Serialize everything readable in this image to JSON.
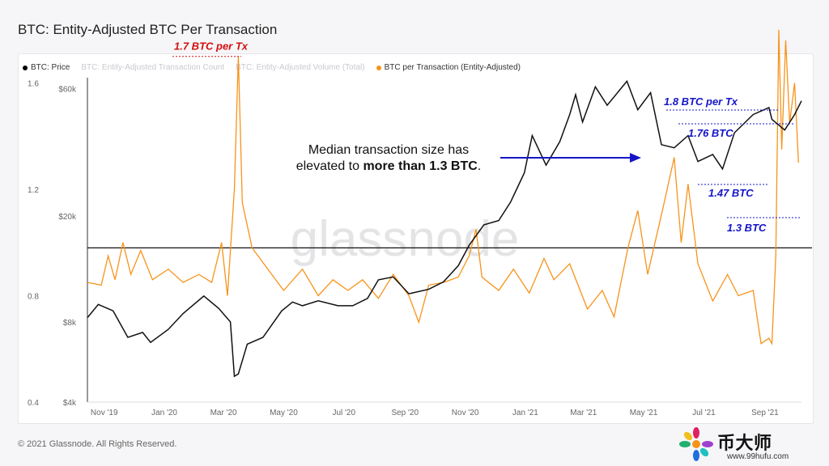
{
  "title": "BTC: Entity-Adjusted BTC Per Transaction",
  "legend": [
    {
      "label": "BTC: Price",
      "color": "#000000",
      "active": true
    },
    {
      "label": "BTC: Entity-Adjusted Transaction Count",
      "color": "#cccccc",
      "active": false
    },
    {
      "label": "BTC: Entity-Adjusted Volume (Total)",
      "color": "#cccccc",
      "active": false
    },
    {
      "label": "BTC per Transaction (Entity-Adjusted)",
      "color": "#f7931a",
      "active": true
    }
  ],
  "footer": "© 2021 Glassnode. All Rights Reserved.",
  "watermark": "glassnode",
  "logo": {
    "brand": "币大师",
    "url": "www.99hufu.com"
  },
  "colors": {
    "price": "#111111",
    "btcpt": "#f7931a",
    "blue": "#1515c8",
    "red": "#d01010"
  },
  "chart_data": {
    "type": "line",
    "x_ticks": [
      "Nov '19",
      "Jan '20",
      "Mar '20",
      "May '20",
      "Jul '20",
      "Sep '20",
      "Nov '20",
      "Jan '21",
      "Mar '21",
      "May '21",
      "Jul '21",
      "Sep '21"
    ],
    "x_range": [
      "2019-10-15",
      "2021-10-08"
    ],
    "left_axis": {
      "ticks": [
        "1.6",
        "1.2",
        "0.8",
        "0.4"
      ],
      "values": [
        1.6,
        1.2,
        0.8,
        0.4
      ],
      "range": [
        0.4,
        1.62
      ]
    },
    "right_axis": {
      "ticks": [
        "$60k",
        "$20k",
        "$8k",
        "$4k"
      ],
      "values": [
        60000,
        20000,
        8000,
        4000
      ],
      "scale": "log",
      "range": [
        4000,
        66000
      ]
    },
    "series": [
      {
        "name": "BTC: Price",
        "axis": "right",
        "points": [
          [
            "2019-10-15",
            8300
          ],
          [
            "2019-10-26",
            9300
          ],
          [
            "2019-11-10",
            8800
          ],
          [
            "2019-11-25",
            7000
          ],
          [
            "2019-12-10",
            7300
          ],
          [
            "2019-12-18",
            6700
          ],
          [
            "2020-01-05",
            7500
          ],
          [
            "2020-01-20",
            8600
          ],
          [
            "2020-02-10",
            10000
          ],
          [
            "2020-02-25",
            9000
          ],
          [
            "2020-03-08",
            8000
          ],
          [
            "2020-03-12",
            5000
          ],
          [
            "2020-03-16",
            5100
          ],
          [
            "2020-03-25",
            6600
          ],
          [
            "2020-04-10",
            7000
          ],
          [
            "2020-04-29",
            8800
          ],
          [
            "2020-05-10",
            9500
          ],
          [
            "2020-05-20",
            9200
          ],
          [
            "2020-06-05",
            9600
          ],
          [
            "2020-06-25",
            9200
          ],
          [
            "2020-07-10",
            9200
          ],
          [
            "2020-07-25",
            9800
          ],
          [
            "2020-08-05",
            11500
          ],
          [
            "2020-08-20",
            11800
          ],
          [
            "2020-09-05",
            10200
          ],
          [
            "2020-09-25",
            10600
          ],
          [
            "2020-10-10",
            11300
          ],
          [
            "2020-10-25",
            13000
          ],
          [
            "2020-11-05",
            15500
          ],
          [
            "2020-11-20",
            18500
          ],
          [
            "2020-12-05",
            19200
          ],
          [
            "2020-12-17",
            22500
          ],
          [
            "2020-12-31",
            29000
          ],
          [
            "2021-01-08",
            40000
          ],
          [
            "2021-01-22",
            31000
          ],
          [
            "2021-02-05",
            38000
          ],
          [
            "2021-02-15",
            48000
          ],
          [
            "2021-02-21",
            57000
          ],
          [
            "2021-02-28",
            45000
          ],
          [
            "2021-03-13",
            61000
          ],
          [
            "2021-03-25",
            52000
          ],
          [
            "2021-04-14",
            64000
          ],
          [
            "2021-04-25",
            50000
          ],
          [
            "2021-05-08",
            58000
          ],
          [
            "2021-05-19",
            37000
          ],
          [
            "2021-06-01",
            36000
          ],
          [
            "2021-06-15",
            40000
          ],
          [
            "2021-06-25",
            32000
          ],
          [
            "2021-07-10",
            34000
          ],
          [
            "2021-07-20",
            30000
          ],
          [
            "2021-08-01",
            41000
          ],
          [
            "2021-08-20",
            48000
          ],
          [
            "2021-09-05",
            51000
          ],
          [
            "2021-09-08",
            46000
          ],
          [
            "2021-09-21",
            42000
          ],
          [
            "2021-10-01",
            48000
          ],
          [
            "2021-10-08",
            54000
          ]
        ]
      },
      {
        "name": "BTC per Transaction (Entity-Adjusted)",
        "axis": "left",
        "points": [
          [
            "2019-10-15",
            0.85
          ],
          [
            "2019-10-29",
            0.84
          ],
          [
            "2019-11-05",
            0.95
          ],
          [
            "2019-11-12",
            0.86
          ],
          [
            "2019-11-20",
            1.0
          ],
          [
            "2019-11-28",
            0.88
          ],
          [
            "2019-12-08",
            0.97
          ],
          [
            "2019-12-20",
            0.86
          ],
          [
            "2020-01-05",
            0.9
          ],
          [
            "2020-01-20",
            0.85
          ],
          [
            "2020-02-05",
            0.88
          ],
          [
            "2020-02-18",
            0.85
          ],
          [
            "2020-02-28",
            1.0
          ],
          [
            "2020-03-05",
            0.8
          ],
          [
            "2020-03-12",
            1.2
          ],
          [
            "2020-03-16",
            1.7
          ],
          [
            "2020-03-20",
            1.15
          ],
          [
            "2020-03-30",
            0.98
          ],
          [
            "2020-04-15",
            0.9
          ],
          [
            "2020-05-01",
            0.82
          ],
          [
            "2020-05-20",
            0.9
          ],
          [
            "2020-06-05",
            0.8
          ],
          [
            "2020-06-20",
            0.86
          ],
          [
            "2020-07-05",
            0.82
          ],
          [
            "2020-07-20",
            0.86
          ],
          [
            "2020-08-05",
            0.79
          ],
          [
            "2020-08-20",
            0.88
          ],
          [
            "2020-09-05",
            0.8
          ],
          [
            "2020-09-15",
            0.7
          ],
          [
            "2020-09-25",
            0.84
          ],
          [
            "2020-10-10",
            0.85
          ],
          [
            "2020-10-25",
            0.87
          ],
          [
            "2020-11-05",
            0.95
          ],
          [
            "2020-11-12",
            1.05
          ],
          [
            "2020-11-18",
            0.87
          ],
          [
            "2020-12-05",
            0.82
          ],
          [
            "2020-12-20",
            0.9
          ],
          [
            "2021-01-05",
            0.81
          ],
          [
            "2021-01-20",
            0.94
          ],
          [
            "2021-01-30",
            0.86
          ],
          [
            "2021-02-15",
            0.92
          ],
          [
            "2021-03-05",
            0.75
          ],
          [
            "2021-03-20",
            0.82
          ],
          [
            "2021-04-01",
            0.72
          ],
          [
            "2021-04-15",
            0.98
          ],
          [
            "2021-04-25",
            1.12
          ],
          [
            "2021-05-05",
            0.88
          ],
          [
            "2021-05-20",
            1.12
          ],
          [
            "2021-06-01",
            1.32
          ],
          [
            "2021-06-08",
            1.0
          ],
          [
            "2021-06-15",
            1.22
          ],
          [
            "2021-06-25",
            0.92
          ],
          [
            "2021-07-10",
            0.78
          ],
          [
            "2021-07-25",
            0.88
          ],
          [
            "2021-08-05",
            0.8
          ],
          [
            "2021-08-20",
            0.82
          ],
          [
            "2021-08-28",
            0.62
          ],
          [
            "2021-09-05",
            0.64
          ],
          [
            "2021-09-08",
            0.62
          ],
          [
            "2021-09-12",
            0.95
          ],
          [
            "2021-09-15",
            1.8
          ],
          [
            "2021-09-18",
            1.35
          ],
          [
            "2021-09-22",
            1.76
          ],
          [
            "2021-09-26",
            1.45
          ],
          [
            "2021-10-01",
            1.6
          ],
          [
            "2021-10-05",
            1.3
          ]
        ]
      }
    ],
    "reference_line": {
      "axis": "left",
      "value": 0.98
    },
    "annotations": [
      {
        "text": "1.7 BTC per Tx",
        "color": "red",
        "value": 1.7
      },
      {
        "text": "1.8 BTC per Tx",
        "color": "blue",
        "value": 1.8
      },
      {
        "text": "1.76 BTC",
        "color": "blue",
        "value": 1.76
      },
      {
        "text": "1.47 BTC",
        "color": "blue",
        "value": 1.47
      },
      {
        "text": "1.3 BTC",
        "color": "blue",
        "value": 1.3
      }
    ],
    "callout": {
      "line1": "Median transaction size has",
      "line2_prefix": "elevated to ",
      "line2_bold": "more than 1.3 BTC",
      "line2_suffix": "."
    }
  }
}
